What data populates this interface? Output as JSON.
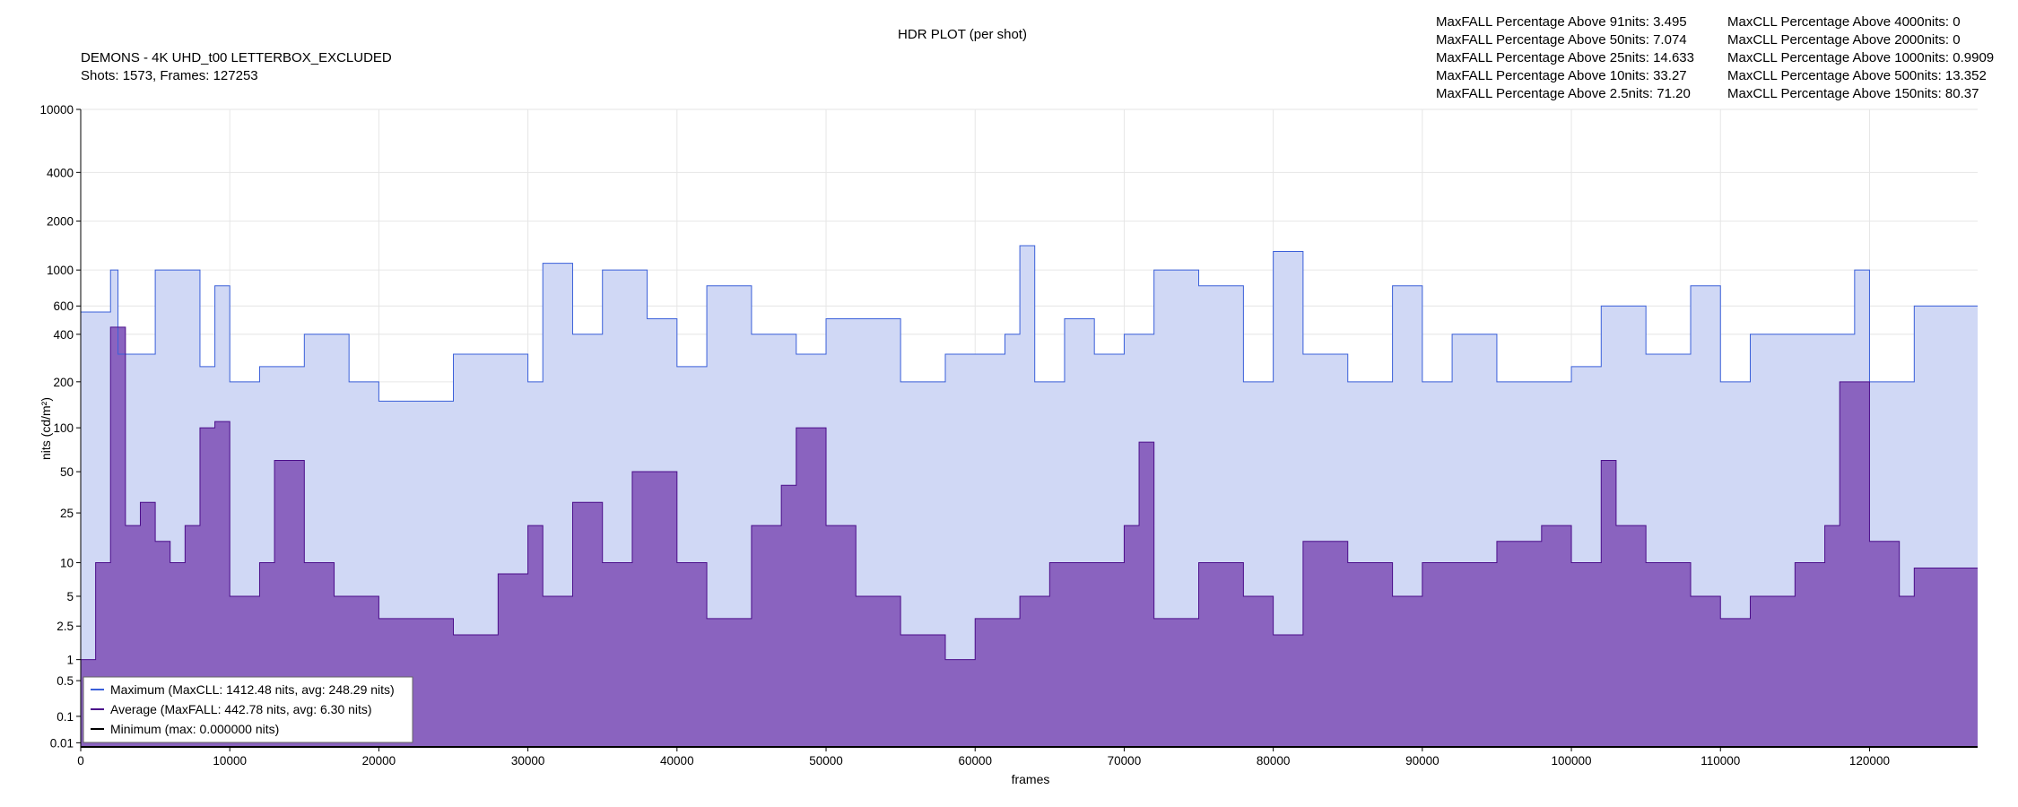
{
  "chart_data": {
    "type": "area",
    "title": "HDR PLOT (per shot)",
    "subtitle_lines": [
      "DEMONS - 4K UHD_t00 LETTERBOX_EXCLUDED",
      "Shots:  1573, Frames: 127253"
    ],
    "stats_maxfall": [
      "MaxFALL Percentage Above  91nits: 3.495",
      "MaxFALL Percentage Above  50nits: 7.074",
      "MaxFALL Percentage Above  25nits: 14.633",
      "MaxFALL Percentage Above  10nits: 33.27",
      "MaxFALL Percentage Above 2.5nits: 71.20"
    ],
    "stats_maxcll": [
      "MaxCLL Percentage Above 4000nits: 0",
      "MaxCLL Percentage Above 2000nits: 0",
      "MaxCLL Percentage Above 1000nits: 0.9909",
      "MaxCLL Percentage Above   500nits: 13.352",
      "MaxCLL Percentage Above   150nits: 80.37"
    ],
    "xlabel": "frames",
    "ylabel": "nits (cd/m²)",
    "xlim": [
      0,
      127253
    ],
    "ylim": [
      0.005,
      10000
    ],
    "y_scale": "pq",
    "x_ticks": [
      0,
      10000,
      20000,
      30000,
      40000,
      50000,
      60000,
      70000,
      80000,
      90000,
      100000,
      110000,
      120000
    ],
    "x_tick_labels": [
      "0",
      "10000",
      "20000",
      "30000",
      "40000",
      "50000",
      "60000",
      "70000",
      "80000",
      "90000",
      "100000",
      "110000",
      "120000"
    ],
    "y_ticks": [
      0.01,
      0.1,
      0.5,
      1,
      2.5,
      5,
      10,
      25,
      50,
      100,
      200,
      400,
      600,
      1000,
      2000,
      4000,
      10000
    ],
    "y_tick_labels": [
      "0.01",
      "0.1",
      "0.5",
      "1",
      "2.5",
      "5",
      "10",
      "25",
      "50",
      "100",
      "200",
      "400",
      "600",
      "1000",
      "2000",
      "4000",
      "10000"
    ],
    "grid": true,
    "legend_position": "bottom-left",
    "colors": {
      "max_line": "#3a5fd9",
      "max_fill": "#d0d8f5",
      "avg_line": "#4b0d8a",
      "avg_fill": "#8a63bf",
      "min_line": "#000000"
    },
    "series": [
      {
        "name": "Maximum (MaxCLL: 1412.48 nits, avg: 248.29 nits)",
        "x": [
          0,
          2000,
          2500,
          5000,
          8000,
          9000,
          10000,
          12000,
          15000,
          18000,
          20000,
          25000,
          30000,
          31000,
          33000,
          35000,
          38000,
          40000,
          42000,
          45000,
          48000,
          50000,
          55000,
          58000,
          60000,
          62000,
          63000,
          64000,
          66000,
          68000,
          70000,
          72000,
          75000,
          78000,
          80000,
          82000,
          85000,
          88000,
          90000,
          92000,
          95000,
          98000,
          100000,
          102000,
          105000,
          108000,
          110000,
          112000,
          115000,
          118000,
          119000,
          120000,
          122000,
          123000,
          127253
        ],
        "y": [
          550,
          1000,
          300,
          1000,
          250,
          800,
          200,
          250,
          400,
          200,
          150,
          300,
          200,
          1100,
          400,
          1000,
          500,
          250,
          800,
          400,
          300,
          500,
          200,
          300,
          300,
          400,
          1412.48,
          200,
          500,
          300,
          400,
          1000,
          800,
          200,
          1300,
          300,
          200,
          800,
          200,
          400,
          200,
          200,
          250,
          600,
          300,
          800,
          200,
          400,
          400,
          400,
          1000,
          200,
          200,
          600,
          600
        ]
      },
      {
        "name": "Average (MaxFALL: 442.78 nits, avg: 6.30 nits)",
        "x": [
          0,
          1000,
          2000,
          3000,
          4000,
          5000,
          6000,
          7000,
          8000,
          9000,
          10000,
          12000,
          13000,
          15000,
          17000,
          20000,
          25000,
          28000,
          30000,
          31000,
          33000,
          35000,
          37000,
          40000,
          42000,
          45000,
          47000,
          48000,
          50000,
          52000,
          55000,
          58000,
          60000,
          63000,
          65000,
          67000,
          70000,
          71000,
          72000,
          75000,
          78000,
          80000,
          82000,
          85000,
          88000,
          90000,
          92000,
          95000,
          98000,
          100000,
          102000,
          103000,
          105000,
          108000,
          110000,
          112000,
          115000,
          117000,
          118000,
          120000,
          122000,
          123000,
          127253
        ],
        "y": [
          1,
          10,
          442.78,
          20,
          30,
          15,
          10,
          20,
          100,
          110,
          5,
          10,
          60,
          10,
          5,
          3,
          2,
          8,
          20,
          5,
          30,
          10,
          50,
          10,
          3,
          20,
          40,
          100,
          20,
          5,
          2,
          1,
          3,
          5,
          10,
          10,
          20,
          80,
          3,
          10,
          5,
          2,
          15,
          10,
          5,
          10,
          10,
          15,
          20,
          10,
          60,
          20,
          10,
          5,
          3,
          5,
          10,
          20,
          200,
          15,
          5,
          9,
          9
        ]
      },
      {
        "name": "Minimum (max: 0.000000 nits)",
        "x": [
          0,
          127253
        ],
        "y": [
          0,
          0
        ]
      }
    ]
  }
}
